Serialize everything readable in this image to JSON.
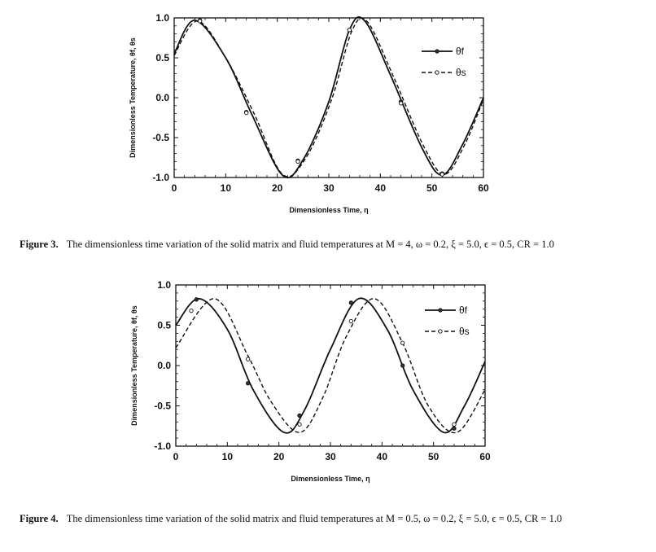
{
  "chart_data": [
    {
      "type": "line",
      "title": "",
      "xlabel": "Dimensionless Time, η",
      "ylabel": "Dimensionless Temperature, θf, θs",
      "xlim": [
        0,
        60
      ],
      "ylim": [
        -1.0,
        1.0
      ],
      "xticks": [
        "0",
        "10",
        "20",
        "30",
        "40",
        "50",
        "60"
      ],
      "yticks": [
        "1.0",
        "0.5",
        "0.0",
        "-0.5",
        "-1.0"
      ],
      "legend_position": "top-right",
      "series": [
        {
          "name": "θf",
          "style": "solid",
          "x": [
            0,
            4,
            10,
            15,
            21,
            25,
            30,
            34,
            37,
            42,
            48,
            52,
            56,
            60
          ],
          "y": [
            0.55,
            0.97,
            0.5,
            -0.2,
            -0.97,
            -0.78,
            -0.05,
            0.85,
            0.96,
            0.28,
            -0.62,
            -0.97,
            -0.58,
            0.0
          ],
          "markers": [
            [
              5,
              0.97
            ],
            [
              14,
              -0.18
            ],
            [
              24,
              -0.79
            ],
            [
              34,
              0.85
            ],
            [
              44,
              -0.05
            ],
            [
              52,
              -0.95
            ]
          ]
        },
        {
          "name": "θs",
          "style": "dashed",
          "x": [
            0,
            4.5,
            10,
            15.5,
            21,
            25.5,
            30.5,
            34.5,
            37.5,
            42.5,
            48.5,
            52.5,
            56.5,
            60
          ],
          "y": [
            0.53,
            0.96,
            0.5,
            -0.2,
            -0.96,
            -0.76,
            -0.03,
            0.84,
            0.95,
            0.27,
            -0.62,
            -0.96,
            -0.57,
            -0.02
          ],
          "markers": [
            [
              5,
              0.96
            ],
            [
              14,
              -0.19
            ],
            [
              24,
              -0.8
            ],
            [
              34,
              0.85
            ],
            [
              44,
              -0.07
            ],
            [
              52,
              -0.96
            ]
          ]
        }
      ]
    },
    {
      "type": "line",
      "title": "",
      "xlabel": "Dimensionless Time, η",
      "ylabel": "Dimensionless Temperature, θf, θs",
      "xlim": [
        0,
        60
      ],
      "ylim": [
        -1.0,
        1.0
      ],
      "xticks": [
        "0",
        "10",
        "20",
        "30",
        "40",
        "50",
        "60"
      ],
      "yticks": [
        "1.0",
        "0.5",
        "0.0",
        "-0.5",
        "-1.0"
      ],
      "legend_position": "top-right",
      "series": [
        {
          "name": "θf",
          "style": "solid",
          "x": [
            0,
            4.5,
            10,
            15,
            21,
            25,
            30,
            35.5,
            41,
            46,
            52,
            56,
            60
          ],
          "y": [
            0.5,
            0.83,
            0.45,
            -0.3,
            -0.83,
            -0.55,
            0.2,
            0.83,
            0.45,
            -0.3,
            -0.83,
            -0.5,
            0.05
          ],
          "markers": [
            [
              4,
              0.82
            ],
            [
              14,
              -0.22
            ],
            [
              24,
              -0.62
            ],
            [
              34,
              0.78
            ],
            [
              44,
              0.0
            ],
            [
              54,
              -0.78
            ]
          ]
        },
        {
          "name": "θs",
          "style": "dashed",
          "x": [
            0,
            7.5,
            14,
            18.5,
            24,
            28.5,
            33,
            38.5,
            44,
            49,
            54.5,
            60
          ],
          "y": [
            0.22,
            0.83,
            0.12,
            -0.45,
            -0.83,
            -0.4,
            0.35,
            0.83,
            0.28,
            -0.5,
            -0.83,
            -0.3
          ],
          "markers": [
            [
              3,
              0.68
            ],
            [
              14,
              0.08
            ],
            [
              24,
              -0.73
            ],
            [
              34,
              0.55
            ],
            [
              44,
              0.28
            ],
            [
              54,
              -0.73
            ]
          ]
        }
      ]
    }
  ],
  "figures": [
    {
      "label": "Figure 3.",
      "caption": "The dimensionless time variation of the solid matrix and fluid temperatures at M = 4, ω = 0.2, ξ = 5.0, ϵ = 0.5, CR = 1.0"
    },
    {
      "label": "Figure 4.",
      "caption": "The dimensionless time variation of the solid matrix and fluid temperatures at M = 0.5, ω = 0.2, ξ = 5.0, ϵ = 0.5, CR = 1.0"
    }
  ]
}
